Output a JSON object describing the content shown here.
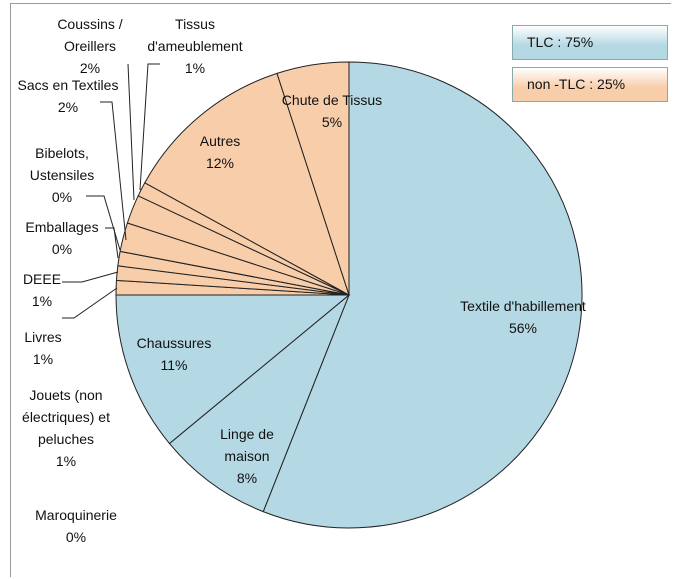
{
  "chart_data": {
    "type": "pie",
    "categories": [
      "Textile d'habillement",
      "Linge de maison",
      "Chaussures",
      "Maroquinerie",
      "Jouets (non électriques) et peluches",
      "Livres",
      "DEEE",
      "Emballages",
      "Bibelots, Ustensiles",
      "Sacs en Textiles",
      "Coussins / Oreillers",
      "Tissus d'ameublement",
      "Autres",
      "Chute de Tissus"
    ],
    "values": [
      56,
      8,
      11,
      0,
      1,
      1,
      1,
      0,
      0,
      2,
      2,
      1,
      12,
      5
    ],
    "value_labels": [
      "56%",
      "8%",
      "11%",
      "0%",
      "1%",
      "1%",
      "1%",
      "0%",
      "0%",
      "2%",
      "2%",
      "1%",
      "12%",
      "5%"
    ],
    "colors": [
      "#b4d8e4",
      "#b4d8e4",
      "#b4d8e4",
      "#f8cdaa",
      "#f8cdaa",
      "#f8cdaa",
      "#f8cdaa",
      "#f8cdaa",
      "#f8cdaa",
      "#f8cdaa",
      "#f8cdaa",
      "#f8cdaa",
      "#f8cdaa",
      "#f8cdaa"
    ],
    "legend": [
      {
        "label": "TLC : 75%",
        "color": "#b4d8e4"
      },
      {
        "label": "non -TLC : 25%",
        "color": "#f8cdaa"
      }
    ]
  }
}
